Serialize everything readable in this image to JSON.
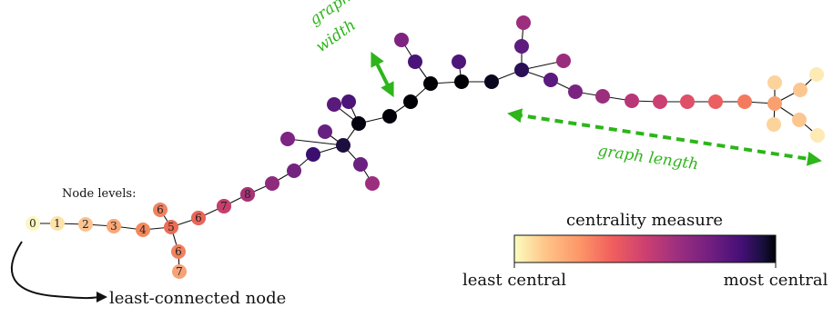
{
  "labels": {
    "node_levels": "Node levels:",
    "least_connected": "least-connected node",
    "graph_width_1": "graph",
    "graph_width_2": "width",
    "graph_length": "graph length",
    "colorbar_title": "centrality measure",
    "colorbar_min": "least central",
    "colorbar_max": "most central"
  },
  "colors": {
    "accent_green": "#2db51a",
    "edge": "#111111",
    "colormap": [
      "#fcfdbf",
      "#fec488",
      "#fd9668",
      "#f1605d",
      "#cd4071",
      "#9e2f7f",
      "#721f81",
      "#440f76",
      "#180f3d",
      "#000004"
    ]
  },
  "level_nodes": [
    {
      "label": "0",
      "color": "#fdf6c2"
    },
    {
      "label": "1",
      "color": "#fde3a8"
    },
    {
      "label": "2",
      "color": "#fbc38f"
    },
    {
      "label": "3",
      "color": "#f9a777"
    },
    {
      "label": "4",
      "color": "#f4895e"
    },
    {
      "label": "5",
      "color": "#ec6c56"
    },
    {
      "label": "6",
      "color": "#f08260"
    },
    {
      "label": "7",
      "color": "#f5a277"
    },
    {
      "label": "6",
      "color": "#f08260"
    },
    {
      "label": "6",
      "color": "#e9665a"
    },
    {
      "label": "7",
      "color": "#c5406c"
    },
    {
      "label": "8",
      "color": "#a83276"
    }
  ]
}
